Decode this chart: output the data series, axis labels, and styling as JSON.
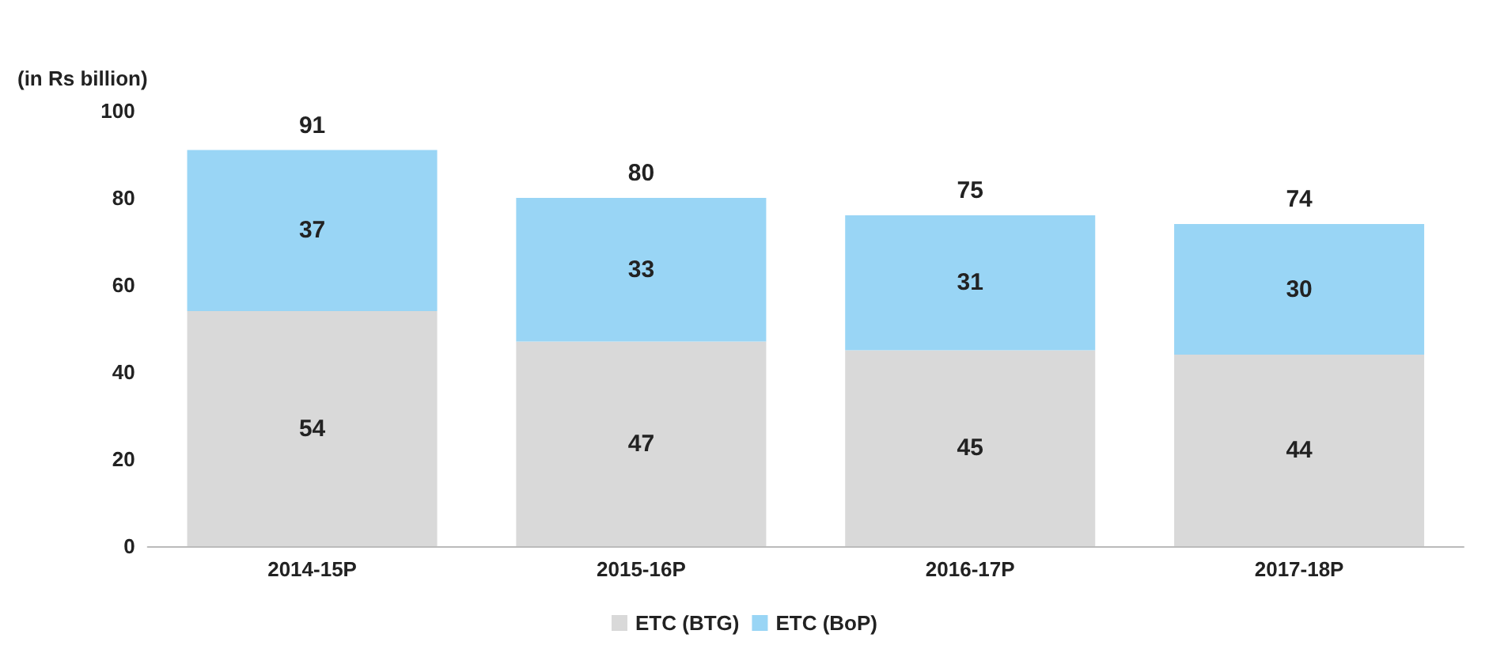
{
  "chart_data": {
    "type": "bar",
    "stacked": true,
    "ylabel": "(in Rs billion)",
    "categories": [
      "2014-15P",
      "2015-16P",
      "2016-17P",
      "2017-18P"
    ],
    "series": [
      {
        "name": "ETC (BTG)",
        "color": "#d9d9d9",
        "values": [
          54,
          47,
          45,
          44
        ]
      },
      {
        "name": "ETC (BoP)",
        "color": "#99d5f5",
        "values": [
          37,
          33,
          31,
          30
        ]
      }
    ],
    "totals": [
      "91",
      "80",
      "75",
      "74"
    ],
    "ylim": [
      0,
      100
    ],
    "yticks": [
      0,
      20,
      40,
      60,
      80,
      100
    ],
    "data_labels": true,
    "grid": false,
    "legend": "bottom"
  }
}
